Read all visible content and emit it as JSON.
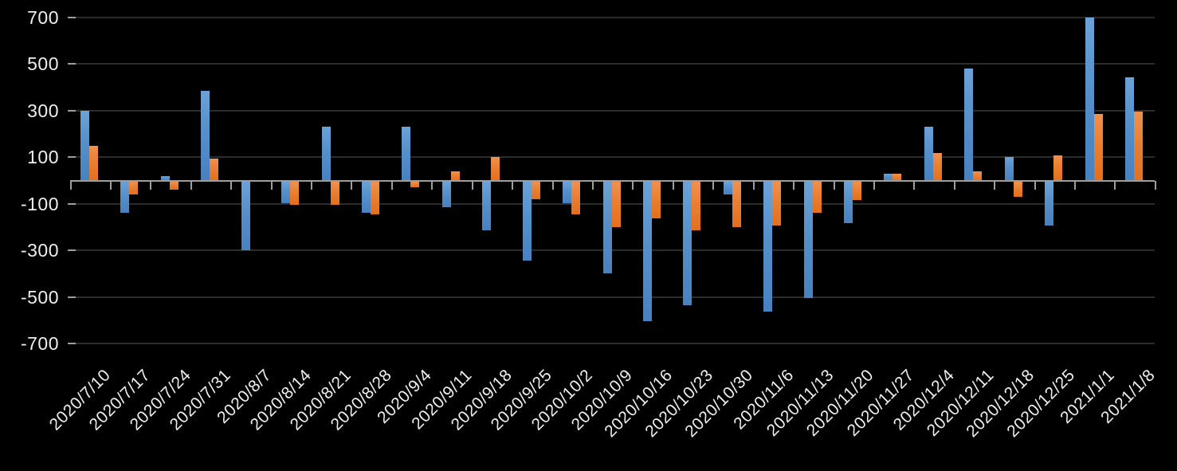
{
  "chart_data": {
    "type": "bar",
    "title": "",
    "legend": "none",
    "grid": true,
    "x_tick_label_rotation": -45,
    "ylim": [
      -700,
      700
    ],
    "y_ticks": [
      700,
      500,
      300,
      100,
      -100,
      -300,
      -500,
      -700
    ],
    "categories": [
      "2020/7/10",
      "2020/7/17",
      "2020/7/24",
      "2020/7/31",
      "2020/8/7",
      "2020/8/14",
      "2020/8/21",
      "2020/8/28",
      "2020/9/4",
      "2020/9/11",
      "2020/9/18",
      "2020/9/25",
      "2020/10/2",
      "2020/10/9",
      "2020/10/16",
      "2020/10/23",
      "2020/10/30",
      "2020/11/6",
      "2020/11/13",
      "2020/11/20",
      "2020/11/27",
      "2020/12/4",
      "2020/12/11",
      "2020/12/18",
      "2020/12/25",
      "2021/1/1",
      "2021/1/8"
    ],
    "series": [
      {
        "id": "blue-series",
        "color": "#5B9BD5",
        "values": [
          300,
          -135,
          20,
          385,
          -295,
          -95,
          230,
          -135,
          230,
          -110,
          -210,
          -340,
          -95,
          -395,
          -600,
          -530,
          -55,
          -560,
          -500,
          -180,
          30,
          230,
          480,
          100,
          -190,
          700,
          445
        ]
      },
      {
        "id": "orange-series",
        "color": "#ED7D31",
        "values": [
          150,
          -55,
          -35,
          95,
          0,
          -100,
          -100,
          -140,
          -25,
          40,
          100,
          -75,
          -140,
          -195,
          -160,
          -210,
          -195,
          -190,
          -135,
          -80,
          30,
          120,
          40,
          -65,
          110,
          285,
          295
        ]
      }
    ],
    "theme": {
      "background": "#000000",
      "gridline_color": "#2C2C2C",
      "axis_color": "#9E9E9E",
      "label_color": "#EFEEEC"
    }
  }
}
